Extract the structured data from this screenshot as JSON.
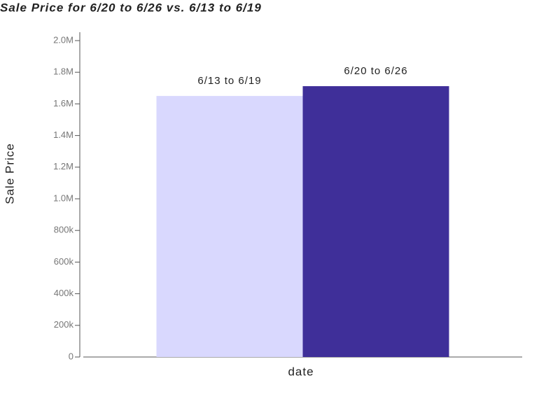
{
  "chart_data": {
    "type": "bar",
    "title": "Sale Price for 6/20 to 6/26 vs. 6/13 to 6/19",
    "x_label": "date",
    "y_label": "Sale Price",
    "categories": [
      null
    ],
    "series": [
      {
        "name": "6/13 to 6/19",
        "color": "#d9d8fe",
        "values": [
          1650000
        ]
      },
      {
        "name": "6/20 to 6/26",
        "color": "#3f2f99",
        "values": [
          1712000
        ]
      }
    ],
    "ylim": [
      0,
      2000000
    ],
    "yticks": [
      0,
      {
        "value": 200000,
        "label": "200k"
      },
      {
        "value": 400000,
        "label": "400k"
      },
      {
        "value": 600000,
        "label": "600k"
      },
      {
        "value": 800000,
        "label": "800k"
      },
      {
        "value": 1000000,
        "label": "1.0M"
      },
      {
        "value": 1200000,
        "label": "1.2M"
      },
      {
        "value": 1400000,
        "label": "1.4M"
      },
      {
        "value": 1600000,
        "label": "1.6M"
      },
      {
        "value": 1800000,
        "label": "1.8M"
      },
      {
        "value": 2000000,
        "label": "2.0M"
      }
    ]
  }
}
